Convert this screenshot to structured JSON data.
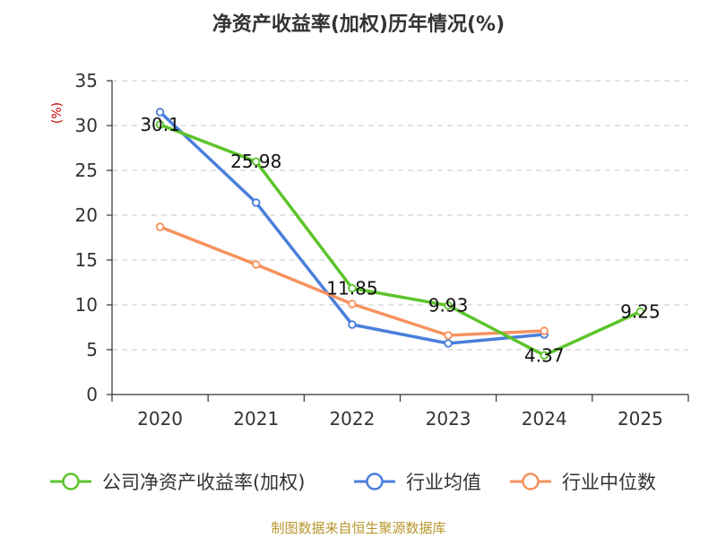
{
  "chart_data": {
    "type": "line",
    "title": "净资产收益率(加权)历年情况(%)",
    "ylabel": "(%)",
    "xlabel": "",
    "categories": [
      "2020",
      "2021",
      "2022",
      "2023",
      "2024",
      "2025"
    ],
    "ylim": [
      0,
      35
    ],
    "yticks": [
      0,
      5,
      10,
      15,
      20,
      25,
      30,
      35
    ],
    "grid": true,
    "legend_position": "bottom",
    "series": [
      {
        "name": "公司净资产收益率(加权)",
        "color": "#5cc42b",
        "values": [
          30.1,
          25.98,
          11.85,
          9.93,
          4.37,
          9.25
        ],
        "labels": [
          "30.1",
          "25.98",
          "11.85",
          "9.93",
          "4.37",
          "9.25"
        ]
      },
      {
        "name": "行业均值",
        "color": "#4a7fdb",
        "values": [
          31.5,
          21.4,
          7.8,
          5.7,
          6.7,
          null
        ]
      },
      {
        "name": "行业中位数",
        "color": "#f5925e",
        "values": [
          18.7,
          14.5,
          10.1,
          6.6,
          7.1,
          null
        ]
      }
    ],
    "source": "制图数据来自恒生聚源数据库"
  }
}
